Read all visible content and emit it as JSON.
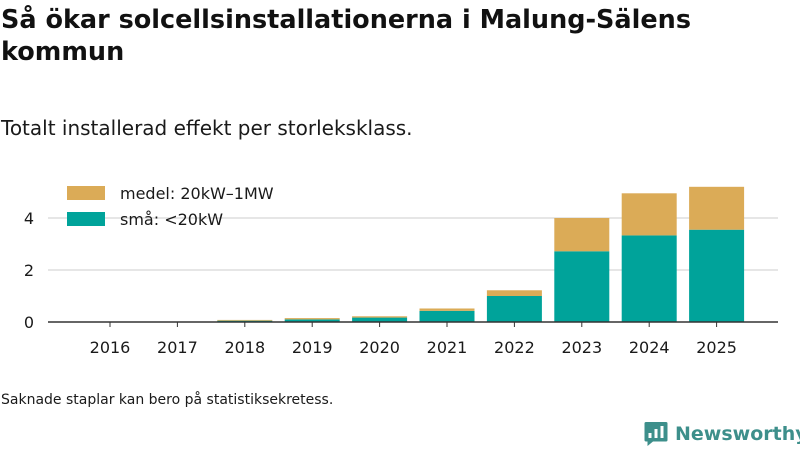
{
  "header": {
    "title": "Så ökar solcellsinstallationerna i Malung-Sälens kommun",
    "subtitle": "Totalt installerad effekt per storleksklass."
  },
  "footer": {
    "note": "Saknade staplar kan bero på statistiksekretess.",
    "brand": "Newsworthy"
  },
  "colors": {
    "medel": "#dbab57",
    "sma": "#00a39a",
    "grid": "#dddddd",
    "axis": "#333333",
    "brand": "#3d8f8b"
  },
  "chart_data": {
    "type": "bar",
    "stacked": true,
    "title": "Så ökar solcellsinstallationerna i Malung-Sälens kommun",
    "subtitle": "Totalt installerad effekt per storleksklass.",
    "xlabel": "",
    "ylabel": "",
    "categories": [
      "2016",
      "2017",
      "2018",
      "2019",
      "2020",
      "2021",
      "2022",
      "2023",
      "2024",
      "2025"
    ],
    "series": [
      {
        "name": "små: <20kW",
        "key": "sma",
        "values": [
          0,
          0,
          0.05,
          0.1,
          0.17,
          0.43,
          1.0,
          2.72,
          3.33,
          3.55
        ]
      },
      {
        "name": "medel: 20kW–1MW",
        "key": "medel",
        "values": [
          0,
          0,
          0.03,
          0.05,
          0.05,
          0.09,
          0.22,
          1.28,
          1.62,
          1.65
        ]
      }
    ],
    "legend_order": [
      "medel",
      "sma"
    ],
    "legend_position": "top-left",
    "yticks": [
      0,
      2,
      4
    ],
    "ylim": [
      0,
      5.6
    ],
    "grid": true
  }
}
